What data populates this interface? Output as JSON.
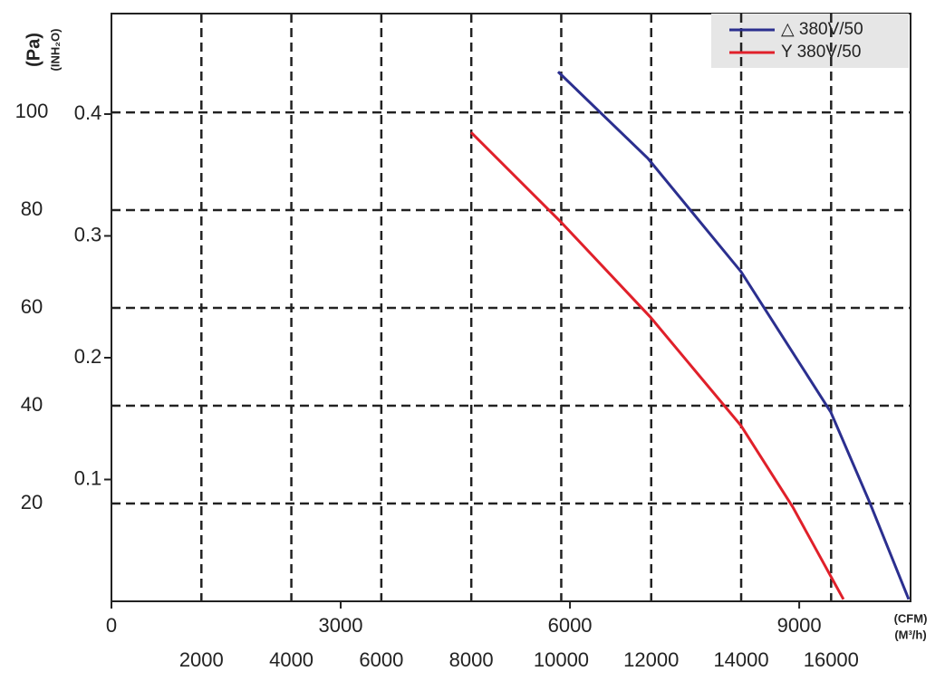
{
  "chart_data": {
    "type": "line",
    "x_label": "(M³/h)",
    "y_label": "(Pa)",
    "x2_label": "(CFM)",
    "y2_label": "(INH₂O)",
    "xlim": [
      0,
      17766
    ],
    "xticks": [
      2000,
      4000,
      6000,
      8000,
      10000,
      12000,
      14000,
      16000
    ],
    "ylim": [
      0,
      120.2
    ],
    "yticks": [
      20,
      40,
      60,
      80,
      100
    ],
    "x2lim": [
      0,
      10457
    ],
    "x2ticks": [
      0,
      3000,
      6000,
      9000
    ],
    "y2lim": [
      0,
      0.4825
    ],
    "y2ticks": [
      0.1,
      0.2,
      0.3,
      0.4
    ],
    "grid": true,
    "legend": "upper right",
    "series": [
      {
        "name": "△ 380V/50",
        "color": "#2b2f8f",
        "x": [
          9930,
          11924,
          13998,
          15992,
          16858,
          17725
        ],
        "values": [
          108.3,
          90.6,
          67.4,
          38.7,
          20.2,
          0.4
        ]
      },
      {
        "name": "Y 380V/50",
        "color": "#e0202a",
        "x": [
          7996,
          9990,
          11984,
          13998,
          15146,
          16274
        ],
        "values": [
          95.9,
          77.6,
          58.1,
          35.9,
          19.3,
          0.4
        ]
      }
    ]
  }
}
